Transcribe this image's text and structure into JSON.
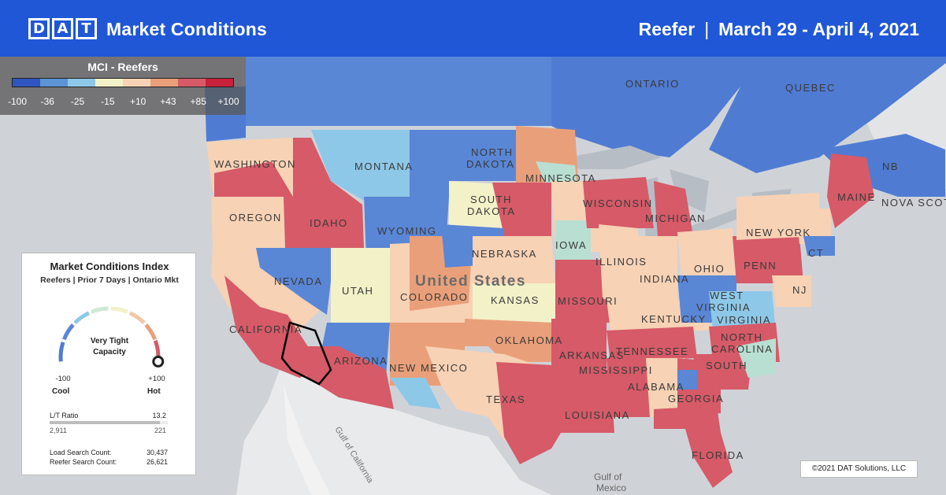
{
  "header": {
    "logo_letters": [
      "D",
      "A",
      "T"
    ],
    "title": "Market Conditions",
    "equipment": "Reefer",
    "separator": "|",
    "date_range": "March 29 - April 4, 2021"
  },
  "legend": {
    "title": "MCI - Reefers",
    "tick_labels": [
      "-100",
      "-36",
      "-25",
      "-15",
      "+10",
      "+43",
      "+85",
      "+100"
    ],
    "colors": [
      "#2f55c0",
      "#5b93d4",
      "#8ec8e8",
      "#f3f1c8",
      "#f7d2b5",
      "#e9a07a",
      "#d65a68",
      "#c8213b"
    ]
  },
  "card": {
    "title": "Market Conditions Index",
    "subtitle": "Reefers | Prior 7 Days | Ontario Mkt",
    "gauge_label": "Very Tight Capacity",
    "gauge_value": 100,
    "min_value": "-100",
    "max_value": "+100",
    "min_word": "Cool",
    "max_word": "Hot",
    "lt_label": "L/T Ratio",
    "lt_ratio": "13.2",
    "lt_loads": "2,911",
    "lt_trucks": "221",
    "lt_fill_fraction": 0.93,
    "load_search_label": "Load Search Count:",
    "load_search_value": "30,437",
    "reefer_search_label": "Reefer Search Count:",
    "reefer_search_value": "26,621"
  },
  "map": {
    "labels": {
      "ontario": "ONTARIO",
      "quebec": "QUEBEC",
      "nb": "NB",
      "nova_scotia": "NOVA SCOTIA",
      "washington": "WASHINGTON",
      "oregon": "OREGON",
      "idaho": "IDAHO",
      "montana": "MONTANA",
      "wyoming": "WYOMING",
      "north_dakota_1": "NORTH",
      "north_dakota_2": "DAKOTA",
      "south_dakota_1": "SOUTH",
      "south_dakota_2": "DAKOTA",
      "minnesota": "MINNESOTA",
      "wisconsin": "WISCONSIN",
      "michigan": "MICHIGAN",
      "new_york": "NEW YORK",
      "maine": "MAINE",
      "ct": "CT",
      "nevada": "NEVADA",
      "utah": "UTAH",
      "colorado": "COLORADO",
      "nebraska": "NEBRASKA",
      "iowa": "IOWA",
      "illinois": "ILLINOIS",
      "indiana": "INDIANA",
      "ohio": "OHIO",
      "penn": "PENN",
      "nj": "NJ",
      "california": "CALIFORNIA",
      "united_states": "United States",
      "kansas": "KANSAS",
      "missouri": "MISSOURI",
      "kentucky": "KENTUCKY",
      "west_virginia_1": "WEST",
      "west_virginia_2": "VIRGINIA",
      "virginia": "VIRGINIA",
      "arizona": "ARIZONA",
      "new_mexico": "NEW MEXICO",
      "oklahoma": "OKLAHOMA",
      "arkansas": "ARKANSAS",
      "tennessee": "TENNESSEE",
      "north_carolina_1": "NORTH",
      "north_carolina_2": "CAROLINA",
      "south": "SOUTH",
      "mississippi": "MISSISSIPPI",
      "alabama": "ALABAMA",
      "georgia": "GEORGIA",
      "texas": "TEXAS",
      "louisiana": "LOUISIANA",
      "florida": "FLORIDA",
      "gulf_of_california": "Gulf of California",
      "gulf_of_mexico_1": "Gulf of",
      "gulf_of_mexico_2": "Mexico"
    }
  },
  "copyright": "©2021 DAT Solutions, LLC"
}
